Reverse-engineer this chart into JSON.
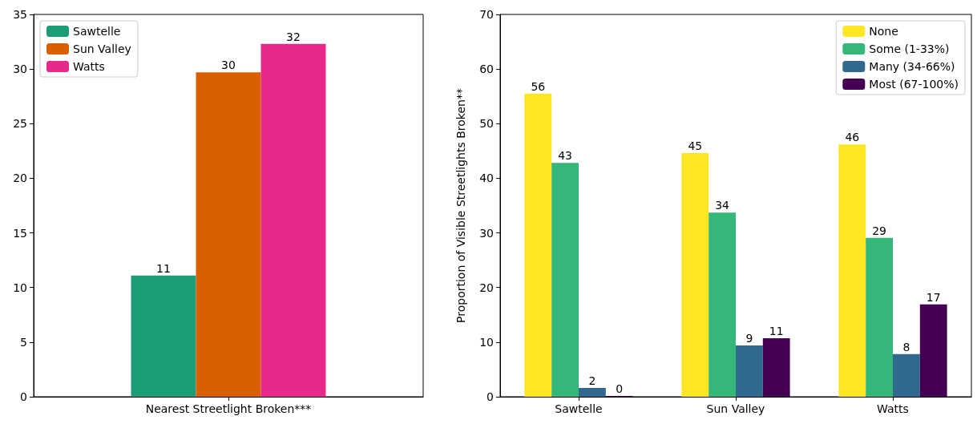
{
  "chart_data": [
    {
      "type": "bar",
      "categories": [
        "Nearest Streetlight Broken***"
      ],
      "ylim": [
        0,
        35
      ],
      "yticks": [
        0,
        5,
        10,
        15,
        20,
        25,
        30,
        35
      ],
      "grid": false,
      "legend": "top left",
      "series": [
        {
          "name": "Sawtelle",
          "color": "#1b9e77",
          "values": [
            11.1
          ],
          "value_labels": [
            "11"
          ]
        },
        {
          "name": "Sun Valley",
          "color": "#d95f02",
          "values": [
            29.7
          ],
          "value_labels": [
            "30"
          ]
        },
        {
          "name": "Watts",
          "color": "#e7298a",
          "values": [
            32.3
          ],
          "value_labels": [
            "32"
          ]
        }
      ]
    },
    {
      "type": "bar",
      "categories": [
        "Sawtelle",
        "Sun Valley",
        "Watts"
      ],
      "ylabel": "Proportion of Visible Streetlights Broken**",
      "ylim": [
        0,
        70
      ],
      "yticks": [
        0,
        10,
        20,
        30,
        40,
        50,
        60,
        70
      ],
      "grid": false,
      "legend": "top right",
      "series": [
        {
          "name": "None",
          "color": "#fde725",
          "values": [
            55.5,
            44.6,
            46.2
          ],
          "value_labels": [
            "56",
            "45",
            "46"
          ]
        },
        {
          "name": "Some (1-33%)",
          "color": "#35b779",
          "values": [
            42.8,
            33.7,
            29.1
          ],
          "value_labels": [
            "43",
            "34",
            "29"
          ]
        },
        {
          "name": "Many (34-66%)",
          "color": "#31688e",
          "values": [
            1.6,
            9.4,
            7.8
          ],
          "value_labels": [
            "2",
            "9",
            "8"
          ]
        },
        {
          "name": "Most (67-100%)",
          "color": "#440154",
          "values": [
            0,
            10.7,
            16.9
          ],
          "value_labels": [
            "0",
            "11",
            "17"
          ]
        }
      ]
    }
  ]
}
